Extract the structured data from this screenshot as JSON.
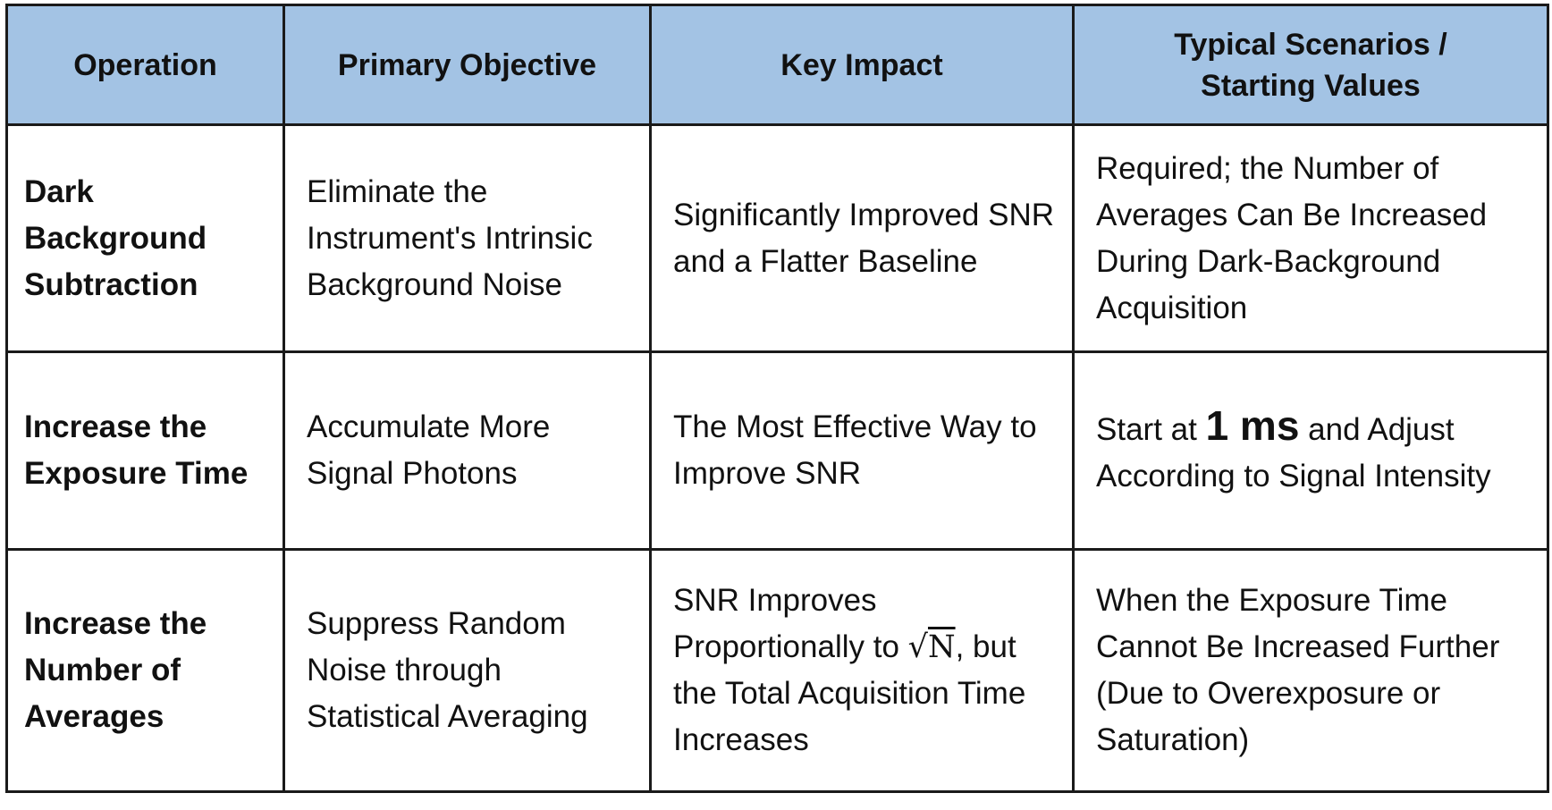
{
  "headers": {
    "operation": "Operation",
    "objective": "Primary Objective",
    "impact": "Key Impact",
    "scenarios_line1": "Typical Scenarios /",
    "scenarios_line2": "Starting Values"
  },
  "rows": [
    {
      "operation": "Dark Background Subtraction",
      "objective": "Eliminate the Instrument's Intrinsic Background Noise",
      "impact": "Significantly Improved SNR and a Flatter Baseline",
      "scenario": "Required; the Number of Averages Can Be Increased During Dark-Background Acquisition"
    },
    {
      "operation": "Increase the Exposure Time",
      "objective": "Accumulate More Signal Photons",
      "impact": "The Most Effective Way to Improve SNR",
      "scenario_pre": "Start at",
      "scenario_highlight": "1 ms",
      "scenario_post": "and Adjust According to Signal Intensity"
    },
    {
      "operation": "Increase the Number of Averages",
      "objective": "Suppress Random Noise through Statistical Averaging",
      "impact_pre": "SNR Improves Proportionally to",
      "impact_sqrt_symbol": "√",
      "impact_sqrt_var": "N",
      "impact_post": ", but the Total Acquisition Time Increases",
      "scenario": "When the Exposure Time Cannot Be Increased Further (Due to Overexposure or Saturation)"
    }
  ],
  "colors": {
    "header_bg": "#a3c3e4",
    "border": "#1a1a1a"
  }
}
